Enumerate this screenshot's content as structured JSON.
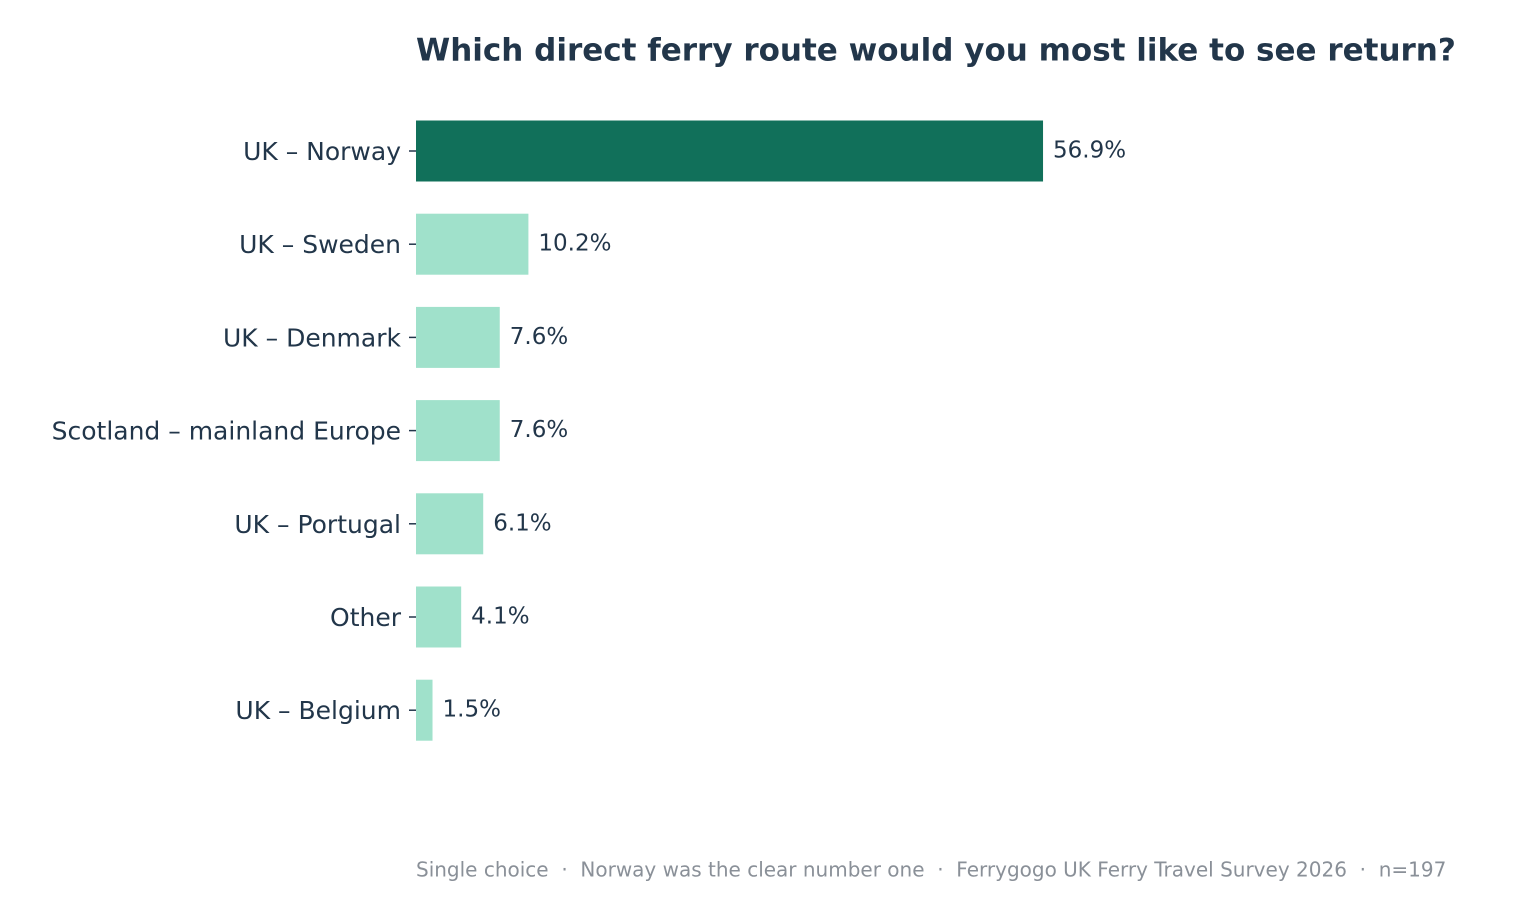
{
  "chart_data": {
    "type": "barh",
    "title": "Which direct ferry route would you most like to see return?",
    "categories": [
      "UK – Norway",
      "UK – Sweden",
      "UK – Denmark",
      "Scotland – mainland Europe",
      "UK – Portugal",
      "Other",
      "UK – Belgium"
    ],
    "values": [
      56.9,
      10.2,
      7.6,
      7.6,
      6.1,
      4.1,
      1.5
    ],
    "value_labels": [
      "56.9%",
      "10.2%",
      "7.6%",
      "7.6%",
      "6.1%",
      "4.1%",
      "1.5%"
    ],
    "colors": [
      "#11705a",
      "#a0e1cb",
      "#a0e1cb",
      "#a0e1cb",
      "#a0e1cb",
      "#a0e1cb",
      "#a0e1cb"
    ],
    "xlim": [
      0,
      100
    ],
    "note": "Single choice  ·  Norway was the clear number one  ·  Ferrygogo UK Ferry Travel Survey 2026  ·  n=197"
  }
}
